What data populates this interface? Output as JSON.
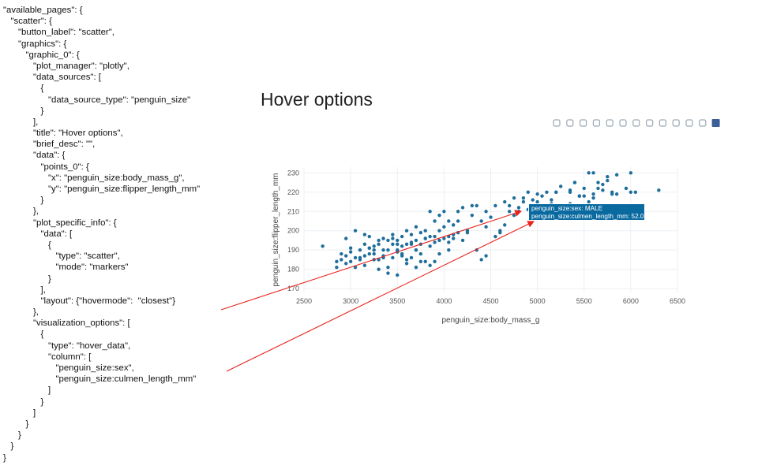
{
  "code_lines": [
    "\"available_pages\": {",
    "   \"scatter\": {",
    "      \"button_label\": \"scatter\",",
    "      \"graphics\": {",
    "         \"graphic_0\": {",
    "            \"plot_manager\": \"plotly\",",
    "            \"data_sources\": [",
    "               {",
    "                  \"data_source_type\": \"penguin_size\"",
    "               }",
    "            ],",
    "            \"title\": \"Hover options\",",
    "            \"brief_desc\": \"\",",
    "            \"data\": {",
    "               \"points_0\": {",
    "                  \"x\": \"penguin_size:body_mass_g\",",
    "                  \"y\": \"penguin_size:flipper_length_mm\"",
    "               }",
    "            },",
    "            \"plot_specific_info\": {",
    "               \"data\": [",
    "                  {",
    "                     \"type\": \"scatter\",",
    "                     \"mode\": \"markers\"",
    "                  }",
    "               ],",
    "               \"layout\": {\"hovermode\":  \"closest\"}",
    "            },",
    "            \"visualization_options\": [",
    "               {",
    "                  \"type\": \"hover_data\",",
    "                  \"column\": [",
    "                     \"penguin_size:sex\",",
    "                     \"penguin_size:culmen_length_mm\"",
    "                  ]",
    "               }",
    "            ]",
    "         }",
    "      }",
    "   }",
    "}"
  ],
  "plot": {
    "title": "Hover options",
    "modebar_icons": [
      "camera-icon",
      "zoom-icon",
      "pan-icon",
      "box-select-icon",
      "lasso-icon",
      "zoom-in-icon",
      "zoom-out-icon",
      "autoscale-icon",
      "home-icon",
      "spike-lines-icon",
      "hover-closest-icon",
      "hover-compare-icon",
      "plotly-logo-icon"
    ],
    "hover_tooltip": {
      "line1": "penguin_size:sex: MALE",
      "line2": "penguin_size:culmen_length_mm: 52.0"
    }
  },
  "chart_data": {
    "type": "scatter",
    "title": "Hover options",
    "xlabel": "penguin_size:body_mass_g",
    "ylabel": "penguin_size:flipper_length_mm",
    "xlim": [
      2500,
      6500
    ],
    "ylim": [
      168,
      233
    ],
    "xticks": [
      2500,
      3000,
      3500,
      4000,
      4500,
      5000,
      5500,
      6000,
      6500
    ],
    "yticks": [
      170,
      180,
      190,
      200,
      210,
      220,
      230
    ],
    "grid": true,
    "legend": "none",
    "marker_color": "#1f6e9c",
    "series": [
      {
        "x": [
          2700,
          2850,
          2850,
          2900,
          2900,
          2950,
          3000,
          3000,
          3050,
          3100,
          3100,
          3150,
          3150,
          3200,
          3200,
          3250,
          3250,
          3300,
          3300,
          3350,
          3350,
          3400,
          3400,
          3450,
          3450,
          3500,
          3500,
          3550,
          3550,
          3600,
          3600,
          3650,
          3650,
          3700,
          3700,
          3700,
          3750,
          3750,
          3800,
          3800,
          3850,
          3850,
          3900,
          3900,
          3950,
          3950,
          4000,
          4000,
          4050,
          4050,
          4100,
          4100,
          4150,
          4200,
          4250,
          4300,
          4350,
          4400,
          4450,
          4500,
          4550,
          4600,
          4650,
          4700,
          4750,
          4800,
          4850,
          4900,
          4950,
          5000,
          5050,
          5100,
          5150,
          5200,
          5250,
          5300,
          5350,
          5400,
          5450,
          5500,
          5550,
          5600,
          5650,
          5700,
          5750,
          5800,
          5850,
          5950,
          6000,
          6050,
          6300,
          3300,
          3500,
          3700,
          3900,
          3600,
          3400,
          3200,
          3800,
          4200,
          4400,
          3350,
          3550,
          3750,
          3950,
          4150,
          3450,
          3650,
          3850,
          4050,
          2950,
          3150,
          3250,
          3050,
          4600,
          4800,
          5000,
          5200,
          5400,
          5600,
          4700,
          4900,
          5100,
          5300,
          5500,
          5700,
          5850,
          4450,
          4650,
          4250,
          3000,
          3900,
          3700,
          3500,
          3300,
          4100,
          5050,
          5250,
          5450,
          5650,
          5750,
          4950,
          5150,
          5350,
          5550,
          4550,
          4350,
          3600,
          3800,
          3400,
          3200,
          3100,
          4000,
          4150,
          4300,
          3750,
          3550,
          3350,
          3650,
          3450,
          3850,
          4450,
          4750,
          4850,
          5150,
          5350,
          5600,
          5800,
          6000,
          3250,
          3950,
          4050,
          3150,
          3050,
          2950,
          3500
        ],
        "y": [
          192,
          184,
          181,
          188,
          185,
          187,
          189,
          184,
          186,
          190,
          185,
          193,
          182,
          188,
          191,
          190,
          185,
          193,
          195,
          187,
          196,
          190,
          195,
          193,
          198,
          190,
          195,
          197,
          188,
          185,
          200,
          193,
          198,
          195,
          190,
          202,
          199,
          188,
          196,
          200,
          210,
          192,
          197,
          205,
          200,
          195,
          210,
          196,
          190,
          205,
          203,
          198,
          210,
          212,
          200,
          208,
          213,
          205,
          210,
          207,
          213,
          199,
          215,
          210,
          217,
          212,
          215,
          220,
          216,
          219,
          218,
          220,
          214,
          220,
          223,
          210,
          221,
          225,
          218,
          222,
          230,
          219,
          225,
          221,
          228,
          220,
          229,
          222,
          230,
          220,
          221,
          180,
          177,
          181,
          184,
          183,
          178,
          191,
          184,
          195,
          185,
          190,
          187,
          193,
          188,
          199,
          186,
          186,
          197,
          194,
          183,
          187,
          192,
          181,
          200,
          210,
          215,
          220,
          225,
          217,
          213,
          211,
          210,
          213,
          218,
          224,
          219,
          187,
          203,
          199,
          191,
          194,
          190,
          189,
          185,
          196,
          210,
          212,
          218,
          222,
          226,
          211,
          216,
          220,
          215,
          197,
          190,
          193,
          196,
          181,
          197,
          186,
          202,
          205,
          213,
          184,
          192,
          186,
          194,
          196,
          182,
          202,
          208,
          217,
          209,
          214,
          230,
          219,
          220,
          188,
          208,
          197,
          198,
          200,
          196,
          193
        ]
      }
    ]
  }
}
